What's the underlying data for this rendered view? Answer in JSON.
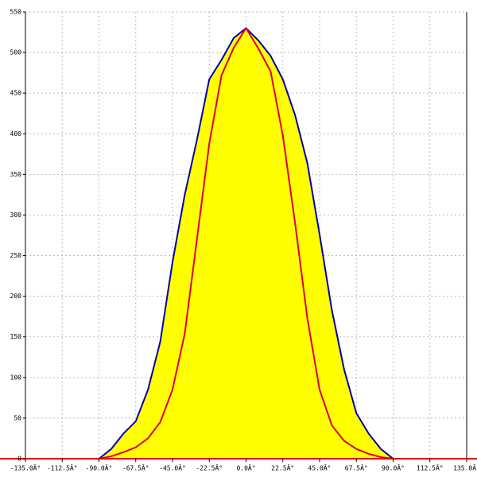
{
  "chart_data": {
    "type": "area",
    "x": [
      -90,
      -82.5,
      -75,
      -67.5,
      -60,
      -52.5,
      -45,
      -37.5,
      -30,
      -22.5,
      -15,
      -7.5,
      0,
      7.5,
      15,
      22.5,
      30,
      37.5,
      45,
      52.5,
      60,
      67.5,
      75,
      82.5,
      90
    ],
    "series": [
      {
        "color": "#0000aa",
        "fill": "#ffff00",
        "values": [
          0,
          12,
          31,
          46,
          85,
          144,
          242,
          325,
          393,
          467,
          491,
          518,
          530,
          515,
          496,
          467,
          423,
          364,
          276,
          183,
          110,
          56,
          31,
          12,
          0
        ]
      },
      {
        "color": "#dd0033",
        "values": [
          0,
          3,
          8,
          14,
          25,
          45,
          85,
          154,
          271,
          388,
          472,
          506,
          530,
          505,
          477,
          398,
          290,
          173,
          85,
          41,
          22,
          12,
          6,
          2,
          0
        ]
      }
    ],
    "xlim": [
      -135,
      135
    ],
    "ylim": [
      0,
      550
    ],
    "xticks": [
      {
        "value": -135,
        "label": "-135.0Â°"
      },
      {
        "value": -112.5,
        "label": "-112.5Â°"
      },
      {
        "value": -90,
        "label": "-90.0Â°"
      },
      {
        "value": -67.5,
        "label": "-67.5Â°"
      },
      {
        "value": -45,
        "label": "-45.0Â°"
      },
      {
        "value": -22.5,
        "label": "-22.5Â°"
      },
      {
        "value": 0,
        "label": "0.0Â°"
      },
      {
        "value": 22.5,
        "label": "22.5Â°"
      },
      {
        "value": 45,
        "label": "45.0Â°"
      },
      {
        "value": 67.5,
        "label": "67.5Â°"
      },
      {
        "value": 90,
        "label": "90.0Â°"
      },
      {
        "value": 112.5,
        "label": "112.5Â°"
      },
      {
        "value": 135,
        "label": "135.0Â°"
      }
    ],
    "yticks": [
      0,
      50,
      100,
      150,
      200,
      250,
      300,
      350,
      400,
      450,
      500,
      550
    ],
    "grid": true
  }
}
